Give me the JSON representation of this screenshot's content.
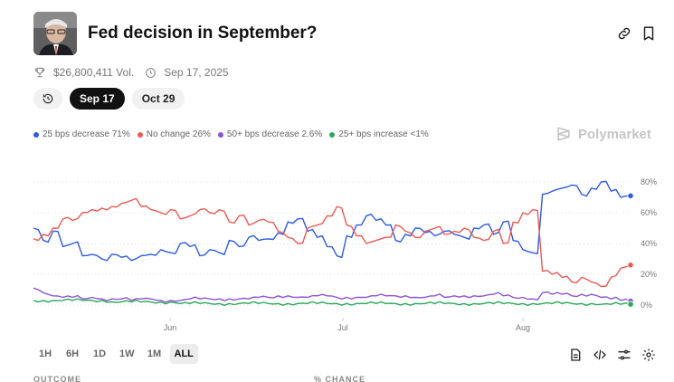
{
  "market": {
    "title": "Fed decision in September?",
    "volume": "$26,800,411 Vol.",
    "date": "Sep 17, 2025"
  },
  "date_tabs": [
    {
      "label": "Sep 17",
      "active": true
    },
    {
      "label": "Oct 29",
      "active": false
    }
  ],
  "legend": [
    {
      "label": "25 bps decrease 71%",
      "color": "#2d5be3"
    },
    {
      "label": "No change 26%",
      "color": "#ec5a52"
    },
    {
      "label": "50+ bps decrease 2.6%",
      "color": "#8b55d6"
    },
    {
      "label": "25+ bps increase <1%",
      "color": "#2aa85a"
    }
  ],
  "brand": "Polymarket",
  "time_ranges": [
    {
      "label": "1H",
      "active": false
    },
    {
      "label": "6H",
      "active": false
    },
    {
      "label": "1D",
      "active": false
    },
    {
      "label": "1W",
      "active": false
    },
    {
      "label": "1M",
      "active": false
    },
    {
      "label": "ALL",
      "active": true
    }
  ],
  "columns": {
    "outcome": "OUTCOME",
    "chance": "% CHANCE"
  },
  "icons": {
    "header": [
      "link-icon",
      "bookmark-icon"
    ],
    "tools": [
      "document-icon",
      "code-icon",
      "sliders-icon",
      "gear-icon"
    ]
  },
  "chart_data": {
    "type": "line",
    "x_ticks": [
      "Jun",
      "Jul",
      "Aug"
    ],
    "y_ticks": [
      "80%",
      "60%",
      "40%",
      "20%",
      "0%"
    ],
    "ylim": [
      0,
      80
    ],
    "grid": true,
    "series": [
      {
        "name": "25 bps decrease",
        "color": "#2d5be3",
        "values": [
          50,
          42,
          48,
          38,
          40,
          32,
          33,
          30,
          33,
          31,
          29,
          32,
          33,
          36,
          34,
          40,
          38,
          32,
          36,
          34,
          42,
          38,
          44,
          42,
          43,
          47,
          54,
          56,
          48,
          44,
          38,
          32,
          45,
          52,
          58,
          55,
          52,
          42,
          46,
          50,
          47,
          45,
          48,
          46,
          44,
          50,
          52,
          46,
          54,
          42,
          36,
          34,
          72,
          74,
          76,
          78,
          72,
          76,
          80,
          74,
          70,
          71
        ]
      },
      {
        "name": "No change",
        "color": "#ec5a52",
        "values": [
          43,
          46,
          50,
          56,
          55,
          60,
          62,
          63,
          64,
          66,
          68,
          64,
          62,
          60,
          62,
          56,
          58,
          62,
          60,
          62,
          54,
          58,
          52,
          55,
          54,
          48,
          44,
          40,
          50,
          52,
          58,
          64,
          52,
          45,
          40,
          42,
          44,
          52,
          48,
          44,
          48,
          50,
          46,
          48,
          50,
          44,
          42,
          48,
          40,
          54,
          60,
          62,
          22,
          20,
          18,
          15,
          18,
          15,
          12,
          18,
          24,
          26
        ]
      },
      {
        "name": "50+ bps decrease",
        "color": "#8b55d6",
        "values": [
          11,
          8,
          6,
          5,
          5,
          4,
          5,
          4,
          4,
          4,
          3,
          4,
          4,
          3,
          3,
          3,
          4,
          4,
          4,
          4,
          4,
          4,
          4,
          5,
          5,
          6,
          6,
          5,
          5,
          6,
          6,
          5,
          5,
          5,
          5,
          6,
          6,
          6,
          6,
          5,
          5,
          6,
          5,
          6,
          6,
          6,
          6,
          7,
          6,
          5,
          5,
          4,
          8,
          7,
          7,
          6,
          7,
          7,
          5,
          4,
          3,
          2.6
        ]
      },
      {
        "name": "25+ bps increase",
        "color": "#2aa85a",
        "values": [
          3,
          3,
          3,
          3,
          3,
          3,
          3,
          3,
          2,
          2,
          2,
          2,
          2,
          2,
          2,
          1,
          1,
          1,
          1,
          1,
          1,
          1,
          1,
          1,
          1,
          1,
          1,
          1,
          1,
          1,
          1,
          1,
          1,
          1,
          1,
          1,
          1,
          1,
          1,
          1,
          1,
          1,
          1,
          1,
          1,
          1,
          1,
          1,
          1,
          1,
          1,
          1,
          1,
          1,
          1,
          1,
          1,
          1,
          0.5,
          0.5,
          0.5,
          0.5
        ]
      }
    ]
  }
}
